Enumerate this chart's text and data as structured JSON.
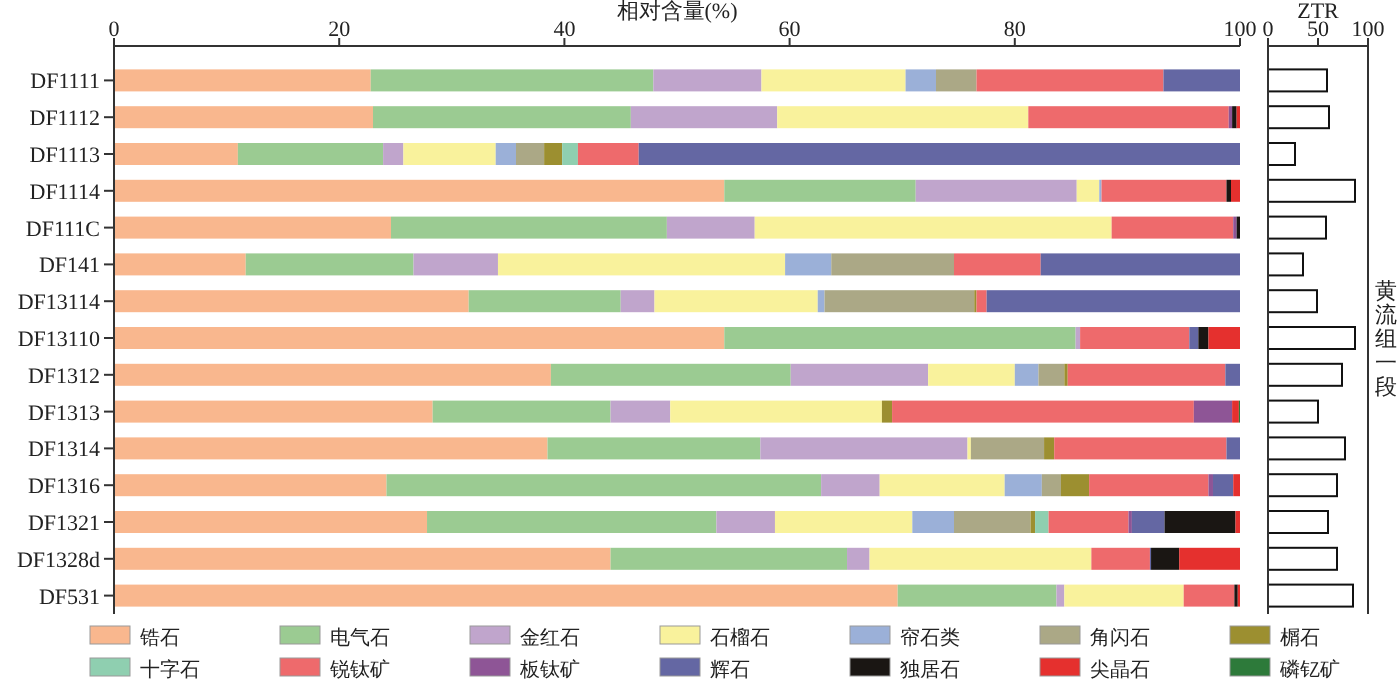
{
  "chart_data": [
    {
      "type": "bar",
      "orientation": "horizontal",
      "stacked": true,
      "xlabel": "相对含量(%)",
      "xlim": [
        0,
        100
      ],
      "xticks": [
        0,
        20,
        40,
        60,
        80,
        100
      ],
      "legend": "bottom",
      "categories": [
        "DF1111",
        "DF1112",
        "DF1113",
        "DF1114",
        "DF111C",
        "DF141",
        "DF13114",
        "DF13110",
        "DF1312",
        "DF1313",
        "DF1314",
        "DF1316",
        "DF1321",
        "DF1328d",
        "DF531"
      ],
      "series": [
        {
          "name": "锆石",
          "color": "#f9b78e",
          "values": [
            22.8,
            23.0,
            11.0,
            54.2,
            24.6,
            11.7,
            31.5,
            54.2,
            38.8,
            28.3,
            38.5,
            24.2,
            27.8,
            44.1,
            69.6
          ]
        },
        {
          "name": "电气石",
          "color": "#9bcb92",
          "values": [
            25.1,
            22.9,
            12.9,
            17.0,
            24.5,
            14.9,
            13.5,
            31.2,
            21.3,
            15.8,
            18.9,
            38.6,
            25.7,
            21.0,
            14.1
          ]
        },
        {
          "name": "金红石",
          "color": "#c0a5cc",
          "values": [
            9.6,
            13.0,
            1.8,
            14.3,
            7.8,
            7.5,
            3.0,
            0.4,
            12.2,
            5.3,
            18.4,
            5.2,
            5.2,
            2.0,
            0.7
          ]
        },
        {
          "name": "石榴石",
          "color": "#f9f29c",
          "values": [
            12.8,
            22.3,
            8.2,
            2.0,
            31.7,
            25.5,
            14.5,
            0,
            7.7,
            18.8,
            0.3,
            11.1,
            12.2,
            19.7,
            10.6
          ]
        },
        {
          "name": "帘石类",
          "color": "#9bb0d8",
          "values": [
            2.7,
            0,
            1.8,
            0.2,
            0,
            4.1,
            0.6,
            0,
            2.1,
            0,
            0,
            3.3,
            3.7,
            0,
            0
          ]
        },
        {
          "name": "角闪石",
          "color": "#aba886",
          "values": [
            3.6,
            0,
            2.5,
            0,
            0,
            10.9,
            13.3,
            0,
            2.3,
            0,
            6.5,
            1.7,
            6.8,
            0,
            0
          ]
        },
        {
          "name": "榍石",
          "color": "#9c8f30",
          "values": [
            0,
            0,
            1.6,
            0,
            0,
            0,
            0.2,
            0,
            0.3,
            0.9,
            0.9,
            2.5,
            0.4,
            0,
            0
          ]
        },
        {
          "name": "十字石",
          "color": "#8fcfb0",
          "values": [
            0,
            0,
            1.4,
            0,
            0,
            0,
            0,
            0,
            0,
            0,
            0,
            0,
            1.2,
            0,
            0
          ]
        },
        {
          "name": "锐钛矿",
          "color": "#ee6a6c",
          "values": [
            16.6,
            17.8,
            5.4,
            11.1,
            10.8,
            7.7,
            0.9,
            9.7,
            14.0,
            26.8,
            15.3,
            10.6,
            7.1,
            5.2,
            4.5
          ]
        },
        {
          "name": "板钛矿",
          "color": "#8e5596",
          "values": [
            0,
            0.3,
            0,
            0,
            0.3,
            0,
            0,
            0,
            0,
            3.4,
            0,
            0.4,
            0.3,
            0,
            0
          ]
        },
        {
          "name": "辉石",
          "color": "#6467a3",
          "values": [
            6.8,
            0,
            53.4,
            0,
            0,
            17.7,
            22.5,
            0.8,
            1.3,
            0,
            1.2,
            1.8,
            2.9,
            0.1,
            0
          ]
        },
        {
          "name": "独居石",
          "color": "#1a1613",
          "values": [
            0,
            0.4,
            0,
            0.4,
            0.3,
            0,
            0,
            0.9,
            0,
            0,
            0,
            0,
            6.3,
            2.5,
            0.3
          ]
        },
        {
          "name": "尖晶石",
          "color": "#e5302e",
          "values": [
            0,
            0.3,
            0,
            0.8,
            0,
            0,
            0,
            2.8,
            0,
            0.6,
            0,
            0.6,
            0.4,
            5.4,
            0.2
          ]
        },
        {
          "name": "磷钇矿",
          "color": "#2d7a3a",
          "values": [
            0,
            0,
            0,
            0,
            0,
            0,
            0,
            0,
            0,
            0.1,
            0,
            0,
            0,
            0,
            0
          ]
        }
      ]
    },
    {
      "type": "bar",
      "orientation": "horizontal",
      "xlabel": "ZTR",
      "xlim": [
        0,
        100
      ],
      "xticks": [
        0,
        50,
        100
      ],
      "tick_labels": "x",
      "color": "#ffffff",
      "values": [
        59,
        61,
        27,
        87,
        58,
        35,
        49,
        87,
        74,
        50,
        77,
        69,
        60,
        69,
        85
      ],
      "annotations": [
        "黄流组一段"
      ]
    }
  ]
}
